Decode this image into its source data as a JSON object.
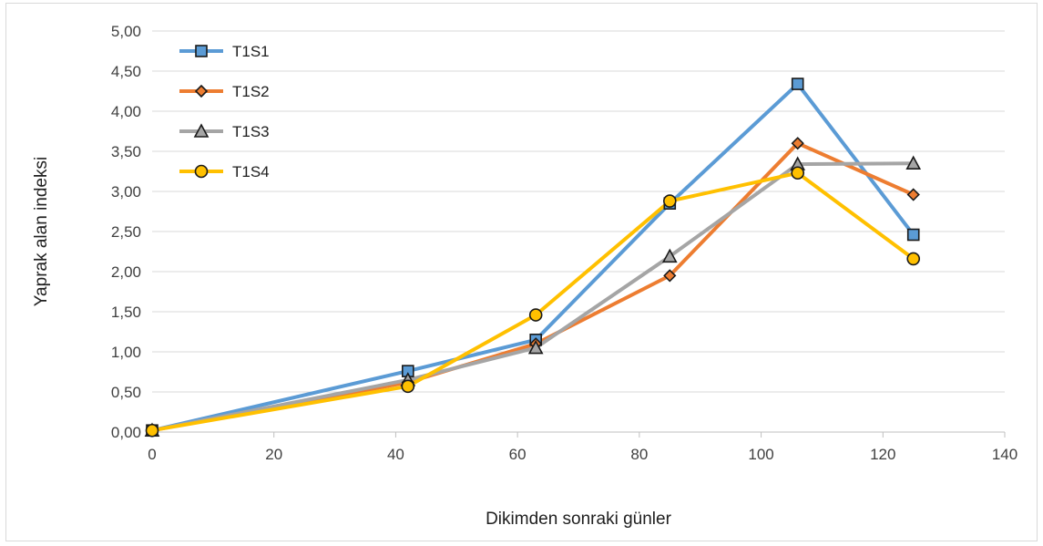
{
  "chart_data": {
    "type": "line",
    "title": "",
    "xlabel": "Dikimden sonraki günler",
    "ylabel": "Yaprak alan indeksi",
    "xlim": [
      0,
      140
    ],
    "ylim": [
      0,
      5
    ],
    "x_ticks": [
      "0",
      "20",
      "40",
      "60",
      "80",
      "100",
      "120",
      "140"
    ],
    "y_ticks": [
      "0,00",
      "0,50",
      "1,00",
      "1,50",
      "2,00",
      "2,50",
      "3,00",
      "3,50",
      "4,00",
      "4,50",
      "5,00"
    ],
    "grid": "horizontal",
    "legend_position": "top-left",
    "x": [
      0,
      42,
      63,
      85,
      106,
      125
    ],
    "series": [
      {
        "name": "T1S1",
        "color": "#5b9bd5",
        "marker": "square",
        "values": [
          0.02,
          0.76,
          1.15,
          2.85,
          4.34,
          2.46
        ]
      },
      {
        "name": "T1S2",
        "color": "#ed7d31",
        "marker": "diamond",
        "values": [
          0.02,
          0.62,
          1.1,
          1.95,
          3.6,
          2.96
        ]
      },
      {
        "name": "T1S3",
        "color": "#a5a5a5",
        "marker": "triangle",
        "values": [
          0.02,
          0.65,
          1.05,
          2.19,
          3.34,
          3.35
        ]
      },
      {
        "name": "T1S4",
        "color": "#ffc000",
        "marker": "circle",
        "values": [
          0.02,
          0.57,
          1.46,
          2.88,
          3.23,
          2.16
        ]
      }
    ]
  }
}
